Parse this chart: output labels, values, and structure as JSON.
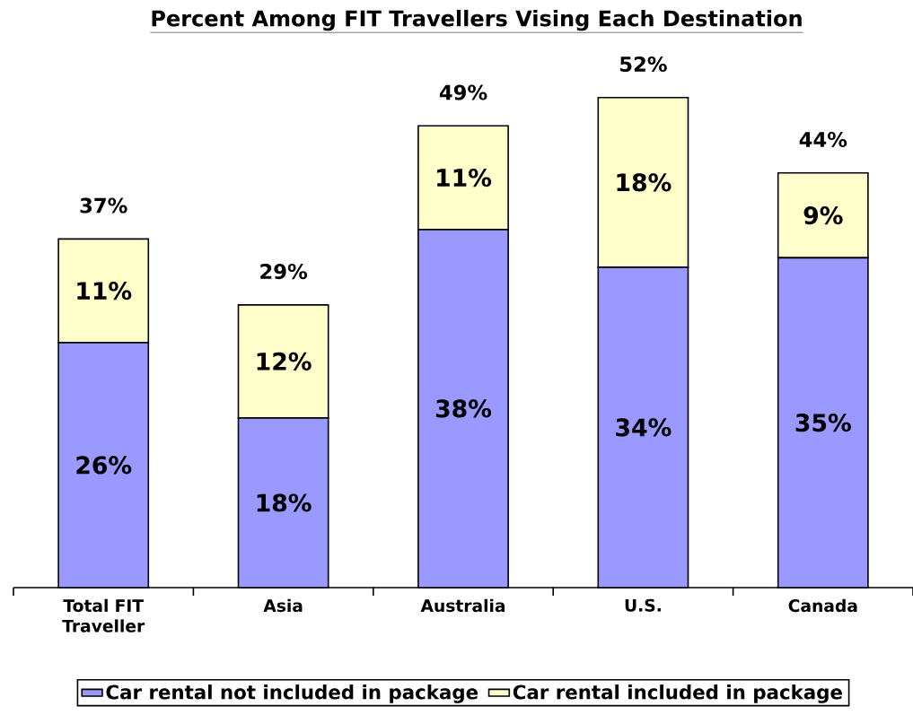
{
  "chart_data": {
    "type": "bar",
    "title": "Percent Among FIT Travellers Vising Each Destination",
    "categories": [
      "Total FIT Traveller",
      "Asia",
      "Australia",
      "U.S.",
      "Canada"
    ],
    "stacked": true,
    "series": [
      {
        "name": "Car rental not included in package",
        "color": "#9999ff",
        "values": [
          26,
          18,
          38,
          34,
          35
        ],
        "value_labels": [
          "26%",
          "18%",
          "38%",
          "34%",
          "35%"
        ]
      },
      {
        "name": "Car rental included in package",
        "color": "#ffffcc",
        "values": [
          11,
          12,
          11,
          18,
          9
        ],
        "value_labels": [
          "11%",
          "12%",
          "11%",
          "18%",
          "9%"
        ]
      }
    ],
    "totals": [
      "37%",
      "29%",
      "49%",
      "52%",
      "44%"
    ],
    "legend": "bottom"
  }
}
